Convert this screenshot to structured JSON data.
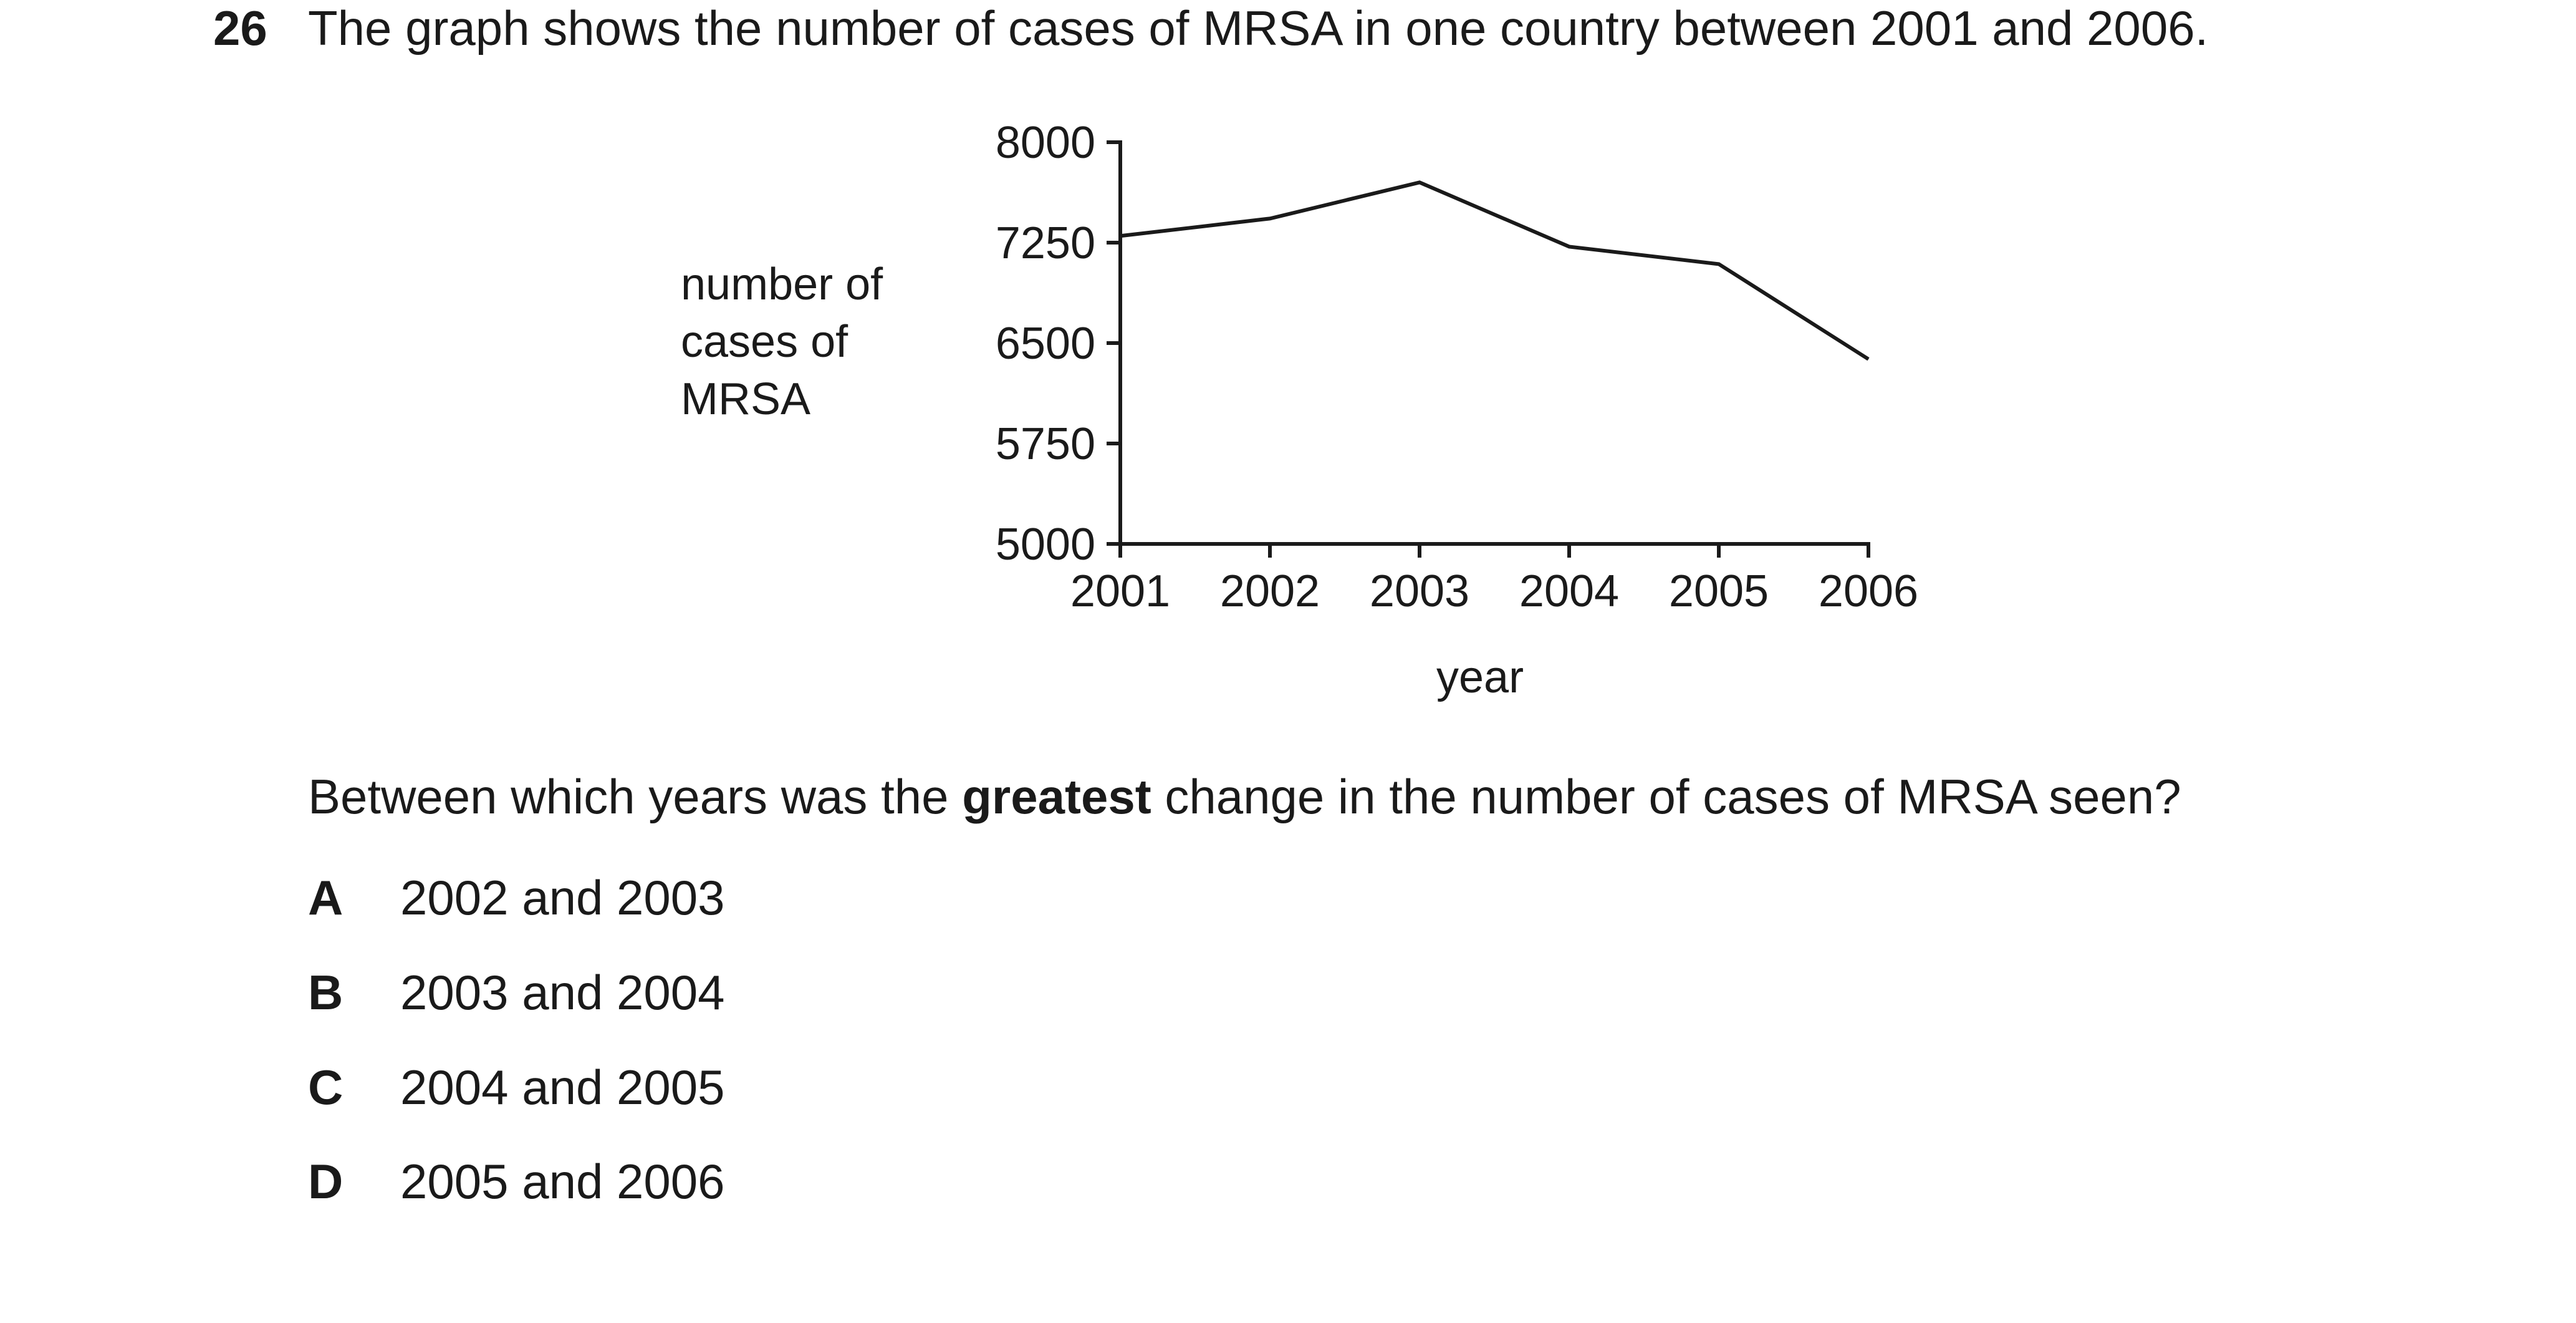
{
  "question": {
    "number": "26",
    "stem": "The graph shows the number of cases of MRSA in one country between 2001 and 2006.",
    "prompt_before": "Between which years was the ",
    "prompt_emphasis": "greatest",
    "prompt_after": " change in the number of cases of MRSA seen?",
    "options": [
      {
        "letter": "A",
        "text": "2002 and 2003"
      },
      {
        "letter": "B",
        "text": "2003 and 2004"
      },
      {
        "letter": "C",
        "text": "2004 and 2005"
      },
      {
        "letter": "D",
        "text": "2005 and 2006"
      }
    ]
  },
  "chart_data": {
    "type": "line",
    "title": "",
    "ylabel_lines": [
      "number of",
      "cases of",
      "MRSA"
    ],
    "xlabel": "year",
    "x": [
      "2001",
      "2002",
      "2003",
      "2004",
      "2005",
      "2006"
    ],
    "series": [
      {
        "values": [
          7300,
          7430,
          7700,
          7220,
          7090,
          6380
        ]
      }
    ],
    "ylim": [
      5000,
      8000
    ],
    "yticks": [
      5000,
      5750,
      6500,
      7250,
      8000
    ],
    "ytick_labels": [
      "5000",
      "5750",
      "6500",
      "7250",
      "8000"
    ],
    "grid": false,
    "line_color": "#1a1a1a"
  }
}
